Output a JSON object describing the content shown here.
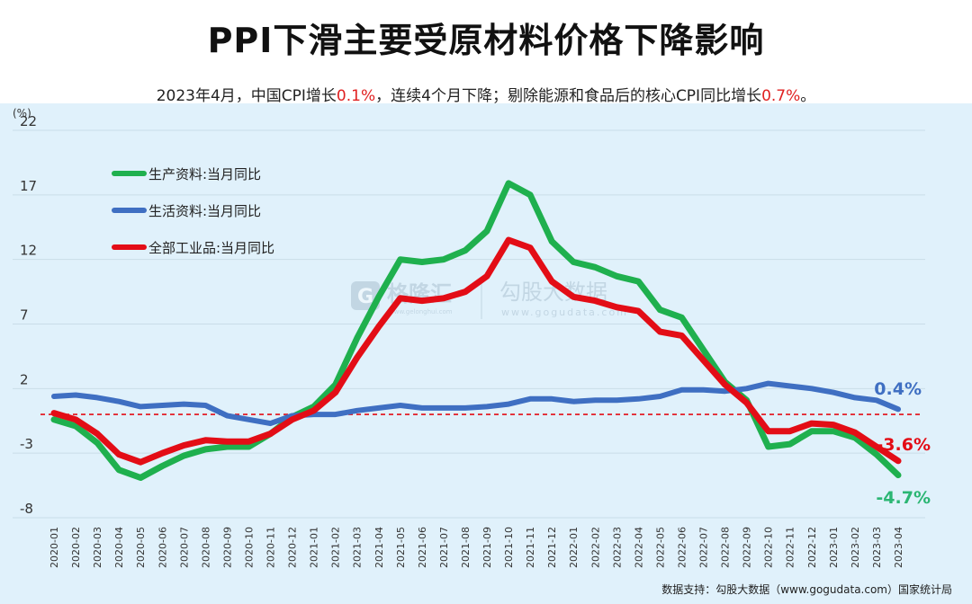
{
  "title": "PPI下滑主要受原材料价格下降影响",
  "subtitle": {
    "p1": "2023年4月，中国CPI增长",
    "v1": "0.1%",
    "p2": "，连续4个月下降；剔除能源和食品后的核心CPI同比增长",
    "v2": "0.7%",
    "p3": "。"
  },
  "source": "数据支持：勾股大数据（www.gogudata.com）国家统计局",
  "watermark": {
    "brand1": "格隆汇",
    "brand1_url": "www.gelonghui.com",
    "brand2": "勾股大数据",
    "brand2_url": "www.gogudata.com"
  },
  "colors": {
    "production": "#1fb04e",
    "living": "#3f6fc2",
    "industry": "#e30d16",
    "grid": "#c9dde8",
    "zero_line": "#e30d16",
    "label_green": "#2bb673"
  },
  "chart_data": {
    "type": "line",
    "title": "",
    "ylabel": "(%)",
    "ylim": [
      -8,
      22
    ],
    "yticks": [
      22,
      17,
      12,
      7,
      2,
      -3,
      -8
    ],
    "grid": "horizontal",
    "legend_position": "top-left",
    "reference_line": 0,
    "x": [
      "2020-01",
      "2020-02",
      "2020-03",
      "2020-04",
      "2020-05",
      "2020-06",
      "2020-07",
      "2020-08",
      "2020-09",
      "2020-10",
      "2020-11",
      "2020-12",
      "2021-01",
      "2021-02",
      "2021-03",
      "2021-04",
      "2021-05",
      "2021-06",
      "2021-07",
      "2021-08",
      "2021-09",
      "2021-10",
      "2021-11",
      "2021-12",
      "2022-01",
      "2022-02",
      "2022-03",
      "2022-04",
      "2022-05",
      "2022-06",
      "2022-07",
      "2022-08",
      "2022-09",
      "2022-10",
      "2022-11",
      "2022-12",
      "2023-01",
      "2023-02",
      "2023-03",
      "2023-04"
    ],
    "series": [
      {
        "name": "生产资料:当月同比",
        "color": "#1fb04e",
        "values": [
          -0.4,
          -0.9,
          -2.2,
          -4.3,
          -4.9,
          -4.0,
          -3.2,
          -2.7,
          -2.5,
          -2.5,
          -1.5,
          -0.2,
          0.6,
          2.3,
          5.9,
          9.1,
          12.0,
          11.8,
          12.0,
          12.7,
          14.2,
          17.9,
          17.0,
          13.4,
          11.8,
          11.4,
          10.7,
          10.3,
          8.1,
          7.5,
          5.0,
          2.5,
          1.1,
          -2.5,
          -2.3,
          -1.3,
          -1.3,
          -1.8,
          -3.1,
          -4.7
        ],
        "end_label": "-4.7%"
      },
      {
        "name": "生活资料:当月同比",
        "color": "#3f6fc2",
        "values": [
          1.4,
          1.5,
          1.3,
          1.0,
          0.6,
          0.7,
          0.8,
          0.7,
          -0.1,
          -0.4,
          -0.7,
          -0.1,
          0.0,
          0.0,
          0.3,
          0.5,
          0.7,
          0.5,
          0.5,
          0.5,
          0.6,
          0.8,
          1.2,
          1.2,
          1.0,
          1.1,
          1.1,
          1.2,
          1.4,
          1.9,
          1.9,
          1.8,
          2.0,
          2.4,
          2.2,
          2.0,
          1.7,
          1.3,
          1.1,
          0.4
        ],
        "end_label": "0.4%"
      },
      {
        "name": "全部工业品:当月同比",
        "color": "#e30d16",
        "values": [
          0.1,
          -0.4,
          -1.5,
          -3.1,
          -3.7,
          -3.0,
          -2.4,
          -2.0,
          -2.1,
          -2.1,
          -1.5,
          -0.4,
          0.3,
          1.7,
          4.4,
          6.8,
          9.0,
          8.8,
          9.0,
          9.5,
          10.7,
          13.5,
          12.9,
          10.3,
          9.1,
          8.8,
          8.3,
          8.0,
          6.4,
          6.1,
          4.2,
          2.3,
          0.9,
          -1.3,
          -1.3,
          -0.7,
          -0.8,
          -1.4,
          -2.5,
          -3.6
        ],
        "end_label": "-3.6%"
      }
    ]
  }
}
